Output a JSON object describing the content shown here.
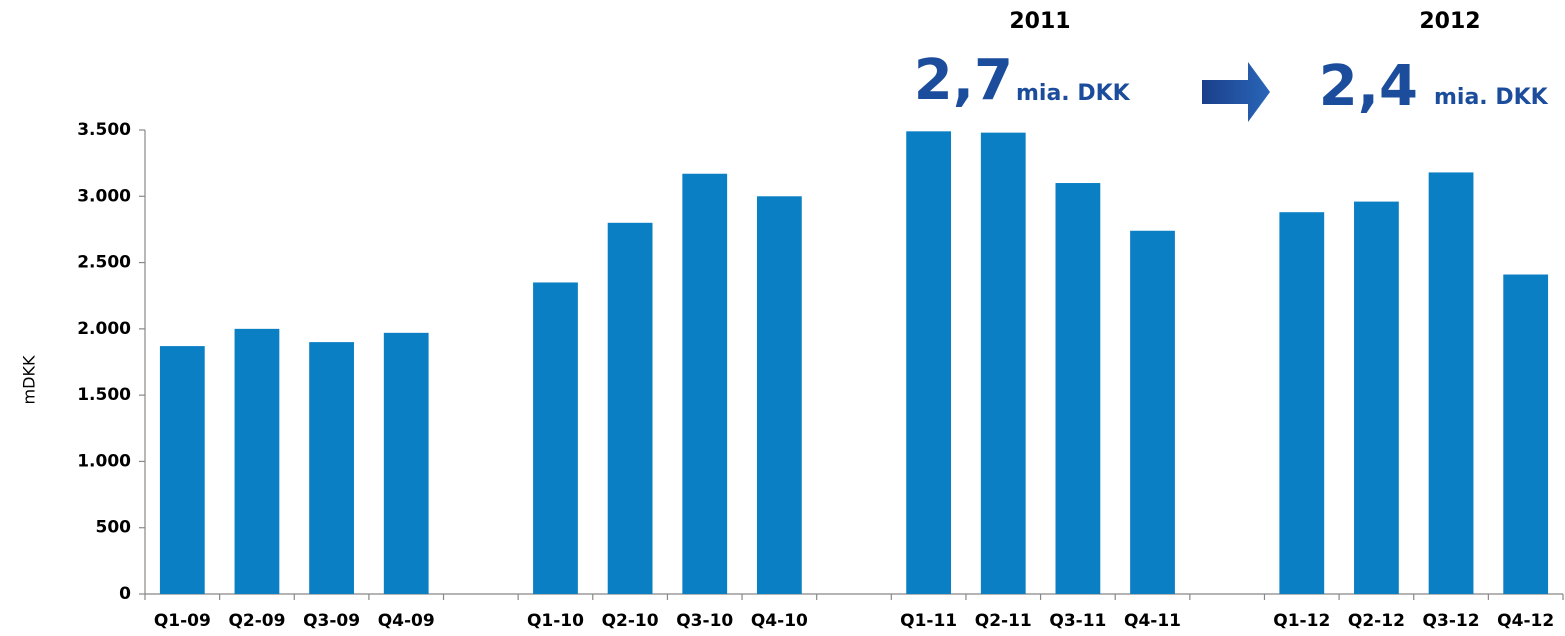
{
  "chart_data": {
    "type": "bar",
    "y_label": "mDKK",
    "categories": [
      "Q1-09",
      "Q2-09",
      "Q3-09",
      "Q4-09",
      null,
      "Q1-10",
      "Q2-10",
      "Q3-10",
      "Q4-10",
      null,
      "Q1-11",
      "Q2-11",
      "Q3-11",
      "Q4-11",
      null,
      "Q1-12",
      "Q2-12",
      "Q3-12",
      "Q4-12"
    ],
    "values": [
      1870,
      2000,
      1900,
      1970,
      null,
      2350,
      2800,
      3170,
      3000,
      null,
      3490,
      3480,
      3100,
      2740,
      null,
      2880,
      2960,
      3180,
      2410
    ],
    "color": "#0a7fc4",
    "ylim": [
      0,
      3500
    ],
    "yticks": [
      0,
      500,
      {
        "value": 1000,
        "label": "1.000"
      },
      {
        "value": 1500,
        "label": "1.500"
      },
      {
        "value": 2000,
        "label": "2.000"
      },
      {
        "value": 2500,
        "label": "2.500"
      },
      {
        "value": 3000,
        "label": "3.000"
      },
      {
        "value": 3500,
        "label": "3.500"
      }
    ],
    "grid": false,
    "annotations": {
      "year_a": "2011",
      "big_a": "2,7",
      "unit_a": "mia. DKK",
      "year_b": "2012",
      "big_b": "2,4",
      "unit_b": "mia. DKK"
    }
  }
}
